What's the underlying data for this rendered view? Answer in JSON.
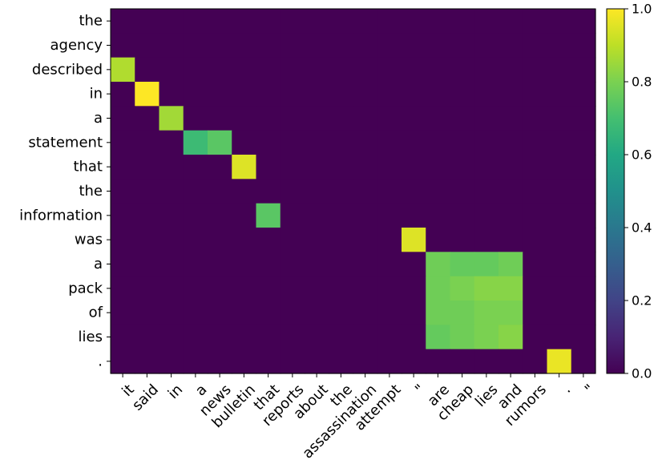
{
  "chart_data": {
    "type": "heatmap",
    "title": "",
    "xlabel": "",
    "ylabel": "",
    "x_tokens": [
      "it",
      "said",
      "in",
      "a",
      "news",
      "bulletin",
      "that",
      "reports",
      "about",
      "the",
      "assassination",
      "attempt",
      "\"",
      "are",
      "cheap",
      "lies",
      "and",
      "rumors",
      ".",
      "\""
    ],
    "y_tokens": [
      "the",
      "agency",
      "described",
      "in",
      "a",
      "statement",
      "that",
      "the",
      "information",
      "was",
      "a",
      "pack",
      "of",
      "lies",
      "."
    ],
    "values": [
      [
        0,
        0,
        0,
        0,
        0,
        0,
        0,
        0,
        0,
        0,
        0,
        0,
        0,
        0,
        0,
        0,
        0,
        0,
        0,
        0
      ],
      [
        0,
        0,
        0,
        0,
        0,
        0,
        0,
        0,
        0,
        0,
        0,
        0,
        0,
        0,
        0,
        0,
        0,
        0,
        0,
        0
      ],
      [
        0.88,
        0,
        0,
        0,
        0,
        0,
        0,
        0,
        0,
        0,
        0,
        0,
        0,
        0,
        0,
        0,
        0,
        0,
        0,
        0
      ],
      [
        0,
        1.0,
        0,
        0,
        0,
        0,
        0,
        0,
        0,
        0,
        0,
        0,
        0,
        0,
        0,
        0,
        0,
        0,
        0,
        0
      ],
      [
        0,
        0,
        0.86,
        0,
        0,
        0,
        0,
        0,
        0,
        0,
        0,
        0,
        0,
        0,
        0,
        0,
        0,
        0,
        0,
        0
      ],
      [
        0,
        0,
        0,
        0.68,
        0.74,
        0,
        0,
        0,
        0,
        0,
        0,
        0,
        0,
        0,
        0,
        0,
        0,
        0,
        0,
        0
      ],
      [
        0,
        0,
        0,
        0,
        0,
        0.95,
        0,
        0,
        0,
        0,
        0,
        0,
        0,
        0,
        0,
        0,
        0,
        0,
        0,
        0
      ],
      [
        0,
        0,
        0,
        0,
        0,
        0,
        0,
        0,
        0,
        0,
        0,
        0,
        0,
        0,
        0,
        0,
        0,
        0,
        0,
        0
      ],
      [
        0,
        0,
        0,
        0,
        0,
        0,
        0.74,
        0,
        0,
        0,
        0,
        0,
        0,
        0,
        0,
        0,
        0,
        0,
        0,
        0
      ],
      [
        0,
        0,
        0,
        0,
        0,
        0,
        0,
        0,
        0,
        0,
        0,
        0,
        0.95,
        0,
        0,
        0,
        0,
        0,
        0,
        0
      ],
      [
        0,
        0,
        0,
        0,
        0,
        0,
        0,
        0,
        0,
        0,
        0,
        0,
        0,
        0.78,
        0.76,
        0.76,
        0.78,
        0,
        0,
        0
      ],
      [
        0,
        0,
        0,
        0,
        0,
        0,
        0,
        0,
        0,
        0,
        0,
        0,
        0,
        0.78,
        0.8,
        0.82,
        0.82,
        0,
        0,
        0
      ],
      [
        0,
        0,
        0,
        0,
        0,
        0,
        0,
        0,
        0,
        0,
        0,
        0,
        0,
        0.78,
        0.78,
        0.8,
        0.8,
        0,
        0,
        0
      ],
      [
        0,
        0,
        0,
        0,
        0,
        0,
        0,
        0,
        0,
        0,
        0,
        0,
        0,
        0.76,
        0.78,
        0.8,
        0.82,
        0,
        0,
        0
      ],
      [
        0,
        0,
        0,
        0,
        0,
        0,
        0,
        0,
        0,
        0,
        0,
        0,
        0,
        0,
        0,
        0,
        0,
        0,
        0.97,
        0
      ]
    ],
    "colormap": "viridis",
    "vmin": 0.0,
    "vmax": 1.0,
    "colorbar_ticks": [
      "0.0",
      "0.2",
      "0.4",
      "0.6",
      "0.8",
      "1.0"
    ]
  }
}
